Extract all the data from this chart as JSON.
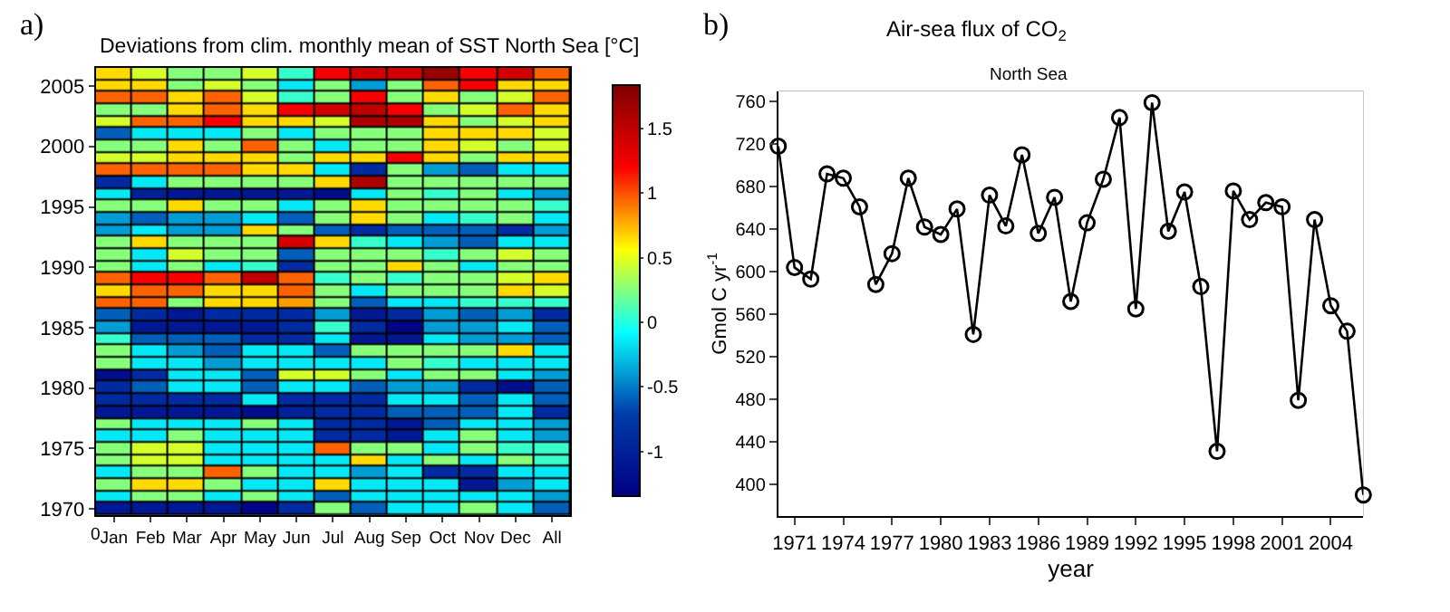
{
  "chart_data": [
    {
      "type": "heatmap",
      "title": "Deviations from clim. monthly mean of SST North Sea [°C]",
      "annotations": [
        "a)",
        "0"
      ],
      "categories": [
        "Jan",
        "Feb",
        "Mar",
        "Apr",
        "May",
        "Jun",
        "Jul",
        "Aug",
        "Sep",
        "Oct",
        "Nov",
        "Dec",
        "All"
      ],
      "y": [
        2006,
        2005,
        2004,
        2003,
        2002,
        2001,
        2000,
        1999,
        1998,
        1997,
        1996,
        1995,
        1994,
        1993,
        1992,
        1991,
        1990,
        1989,
        1988,
        1987,
        1986,
        1985,
        1984,
        1983,
        1982,
        1981,
        1980,
        1979,
        1978,
        1977,
        1976,
        1975,
        1974,
        1973,
        1972,
        1971,
        1970
      ],
      "ylim": [
        1969.5,
        2006.5
      ],
      "yticks": [
        1970,
        1975,
        1980,
        1985,
        1990,
        1995,
        2000,
        2005
      ],
      "clim": [
        -1.35,
        1.83
      ],
      "cticks": [
        -1,
        -0.5,
        0,
        0.5,
        1,
        1.5
      ],
      "cells": [
        [
          0.65,
          0.45,
          0.25,
          0.25,
          0.45,
          0.05,
          1.2,
          1.4,
          1.4,
          1.7,
          1.2,
          1.4,
          0.95
        ],
        [
          0.65,
          0.65,
          0.25,
          0.45,
          0.25,
          -0.15,
          0.25,
          -0.4,
          0.25,
          0.95,
          1.2,
          0.65,
          0.65
        ],
        [
          0.95,
          0.95,
          0.65,
          0.95,
          0.45,
          0.05,
          0.25,
          1.2,
          0.25,
          0.65,
          0.25,
          0.45,
          0.95
        ],
        [
          0.25,
          0.25,
          0.65,
          0.95,
          0.65,
          1.2,
          1.4,
          1.5,
          1.2,
          0.25,
          0.45,
          0.95,
          0.65
        ],
        [
          0.45,
          0.95,
          0.95,
          1.2,
          0.65,
          0.65,
          0.45,
          1.6,
          1.6,
          0.65,
          0.25,
          0.45,
          0.65
        ],
        [
          -0.6,
          -0.15,
          -0.15,
          -0.15,
          0.25,
          -0.15,
          0.25,
          0.25,
          0.25,
          0.65,
          0.65,
          0.65,
          0.45
        ],
        [
          0.25,
          0.25,
          0.65,
          0.25,
          0.95,
          0.25,
          -0.15,
          0.25,
          0.25,
          0.65,
          0.45,
          0.25,
          0.45
        ],
        [
          0.45,
          0.45,
          0.65,
          0.65,
          0.65,
          0.25,
          0.65,
          0.65,
          1.2,
          0.65,
          0.25,
          0.65,
          0.65
        ],
        [
          0.95,
          0.95,
          0.95,
          0.95,
          0.65,
          0.65,
          -0.15,
          -0.9,
          0.25,
          -0.4,
          -0.6,
          -0.15,
          -0.15
        ],
        [
          -0.9,
          -0.15,
          0.25,
          0.25,
          0.25,
          0.25,
          0.65,
          1.6,
          0.25,
          0.25,
          0.25,
          0.25,
          0.25
        ],
        [
          -0.15,
          -1.0,
          -1.1,
          -1.1,
          -1.1,
          -1.1,
          -1.2,
          -0.15,
          0.25,
          0.05,
          0.25,
          -0.15,
          -0.4
        ],
        [
          0.25,
          0.25,
          0.65,
          0.25,
          0.25,
          -0.15,
          0.25,
          0.65,
          0.25,
          0.25,
          0.25,
          0.25,
          0.05
        ],
        [
          -0.4,
          -0.6,
          -0.4,
          -0.4,
          -0.15,
          -0.6,
          0.25,
          0.65,
          0.25,
          -0.15,
          0.05,
          0.25,
          -0.15
        ],
        [
          -0.4,
          -0.15,
          -0.4,
          -0.4,
          0.65,
          0.25,
          -0.6,
          -0.9,
          -0.6,
          -0.6,
          -0.6,
          -0.9,
          -0.4
        ],
        [
          0.25,
          0.65,
          0.25,
          0.25,
          0.25,
          1.4,
          0.65,
          0.05,
          -0.15,
          -0.4,
          -0.6,
          -0.15,
          -0.15
        ],
        [
          0.25,
          -0.15,
          0.45,
          0.25,
          0.25,
          -0.6,
          0.25,
          0.25,
          0.25,
          0.05,
          0.25,
          0.45,
          0.25
        ],
        [
          0.25,
          -0.15,
          0.25,
          -0.15,
          0.05,
          -0.9,
          0.25,
          0.25,
          0.65,
          0.25,
          -0.15,
          0.25,
          0.25
        ],
        [
          0.95,
          1.2,
          1.2,
          0.95,
          1.5,
          0.95,
          0.05,
          0.25,
          0.05,
          0.25,
          0.25,
          0.45,
          0.65
        ],
        [
          0.65,
          0.95,
          0.95,
          0.65,
          0.65,
          0.95,
          0.25,
          -0.15,
          0.25,
          0.25,
          0.25,
          0.65,
          0.45
        ],
        [
          0.95,
          0.95,
          0.25,
          0.65,
          0.65,
          0.8,
          0.25,
          -0.6,
          -0.15,
          -0.15,
          0.05,
          0.05,
          0.05
        ],
        [
          -0.6,
          -0.9,
          -1.1,
          -0.9,
          -0.9,
          -0.9,
          -0.4,
          -1.1,
          -0.9,
          -0.4,
          -0.6,
          -0.4,
          -0.9
        ],
        [
          -0.4,
          -1.1,
          -1.1,
          -1.1,
          -1.1,
          -0.9,
          0.05,
          -0.9,
          -1.3,
          -0.4,
          -0.4,
          -0.15,
          -0.6
        ],
        [
          0.05,
          -0.6,
          -0.6,
          -0.6,
          -0.9,
          -0.9,
          -0.15,
          -1.1,
          -1.1,
          -0.15,
          -0.4,
          -0.4,
          -0.6
        ],
        [
          0.25,
          -0.15,
          -0.4,
          -0.6,
          -0.15,
          -0.15,
          -0.6,
          0.25,
          0.25,
          0.25,
          0.25,
          0.65,
          -0.15
        ],
        [
          0.25,
          -0.15,
          -0.15,
          -0.4,
          -0.15,
          -0.15,
          -0.15,
          -0.15,
          0.25,
          0.05,
          -0.15,
          -0.15,
          -0.15
        ],
        [
          -1.2,
          -0.9,
          -0.15,
          -0.15,
          -0.6,
          0.45,
          0.45,
          0.25,
          -0.15,
          0.25,
          0.25,
          -0.15,
          -0.4
        ],
        [
          -0.9,
          -0.6,
          -0.15,
          -0.15,
          -0.6,
          -0.15,
          -0.15,
          -0.6,
          -0.4,
          -0.4,
          -0.9,
          -1.2,
          -0.6
        ],
        [
          -0.9,
          -0.9,
          -0.9,
          -0.9,
          -0.15,
          -0.9,
          -0.9,
          -0.9,
          -0.15,
          -0.15,
          -0.6,
          -0.15,
          -0.6
        ],
        [
          -1.1,
          -1.1,
          -1.1,
          -1.1,
          -1.2,
          -1.0,
          -0.9,
          -0.9,
          -0.6,
          -0.6,
          -0.6,
          -0.15,
          -0.9
        ],
        [
          0.25,
          -0.15,
          -0.15,
          -0.15,
          0.25,
          -0.15,
          -0.9,
          -0.9,
          -1.1,
          -0.6,
          -0.15,
          -0.15,
          -0.4
        ],
        [
          -0.15,
          -0.15,
          0.25,
          -0.15,
          -0.15,
          -0.15,
          -0.9,
          -0.9,
          -1.1,
          -0.15,
          0.25,
          -0.15,
          -0.4
        ],
        [
          0.25,
          0.45,
          0.45,
          -0.15,
          -0.15,
          -0.15,
          0.95,
          0.25,
          0.25,
          -0.15,
          0.25,
          0.05,
          0.05
        ],
        [
          0.25,
          0.45,
          0.45,
          -0.15,
          -0.15,
          -0.15,
          -0.15,
          0.65,
          -0.15,
          0.25,
          -0.15,
          0.25,
          0.05
        ],
        [
          -0.15,
          0.25,
          0.25,
          0.95,
          0.25,
          -0.15,
          -0.15,
          -0.4,
          -0.15,
          -0.9,
          -0.9,
          -0.15,
          -0.15
        ],
        [
          0.25,
          0.65,
          0.65,
          0.25,
          -0.15,
          -0.15,
          0.65,
          -0.15,
          -0.15,
          -0.15,
          -1.1,
          -0.4,
          -0.15
        ],
        [
          -0.15,
          0.25,
          0.25,
          -0.15,
          0.25,
          -0.15,
          -0.6,
          -0.15,
          -0.15,
          -0.15,
          -0.15,
          -0.15,
          -0.4
        ],
        [
          -1.1,
          -1.1,
          -1.1,
          -1.1,
          -1.3,
          -0.9,
          0.25,
          -0.6,
          -0.15,
          -0.15,
          0.25,
          -0.15,
          -0.6
        ]
      ]
    },
    {
      "type": "line",
      "title": "Air-sea flux of CO$_{2}$",
      "subtitle": "North Sea",
      "xlabel": "year",
      "ylabel": "Gmol C yr$^{-1}$",
      "annotations": [
        "b)"
      ],
      "x": [
        1970,
        1971,
        1972,
        1973,
        1974,
        1975,
        1976,
        1977,
        1978,
        1979,
        1980,
        1981,
        1982,
        1983,
        1984,
        1985,
        1986,
        1987,
        1988,
        1989,
        1990,
        1991,
        1992,
        1993,
        1994,
        1995,
        1996,
        1997,
        1998,
        1999,
        2000,
        2001,
        2002,
        2003,
        2004,
        2005,
        2006
      ],
      "series": [
        {
          "color": "#000000",
          "values": [
            718,
            604,
            593,
            692,
            688,
            661,
            588,
            617,
            688,
            642,
            635,
            659,
            541,
            672,
            643,
            710,
            636,
            670,
            572,
            646,
            687,
            745,
            565,
            759,
            638,
            675,
            586,
            431,
            676,
            649,
            665,
            661,
            479,
            649,
            568,
            544,
            390
          ]
        }
      ],
      "xlim": [
        1970,
        2006
      ],
      "xticks": [
        1971,
        1974,
        1977,
        1980,
        1983,
        1986,
        1989,
        1992,
        1995,
        1998,
        2001,
        2004
      ],
      "ylim": [
        370,
        770
      ],
      "yticks": [
        400,
        440,
        480,
        520,
        560,
        600,
        640,
        680,
        720,
        760
      ],
      "marker": "circle",
      "line_style": "solid"
    }
  ]
}
